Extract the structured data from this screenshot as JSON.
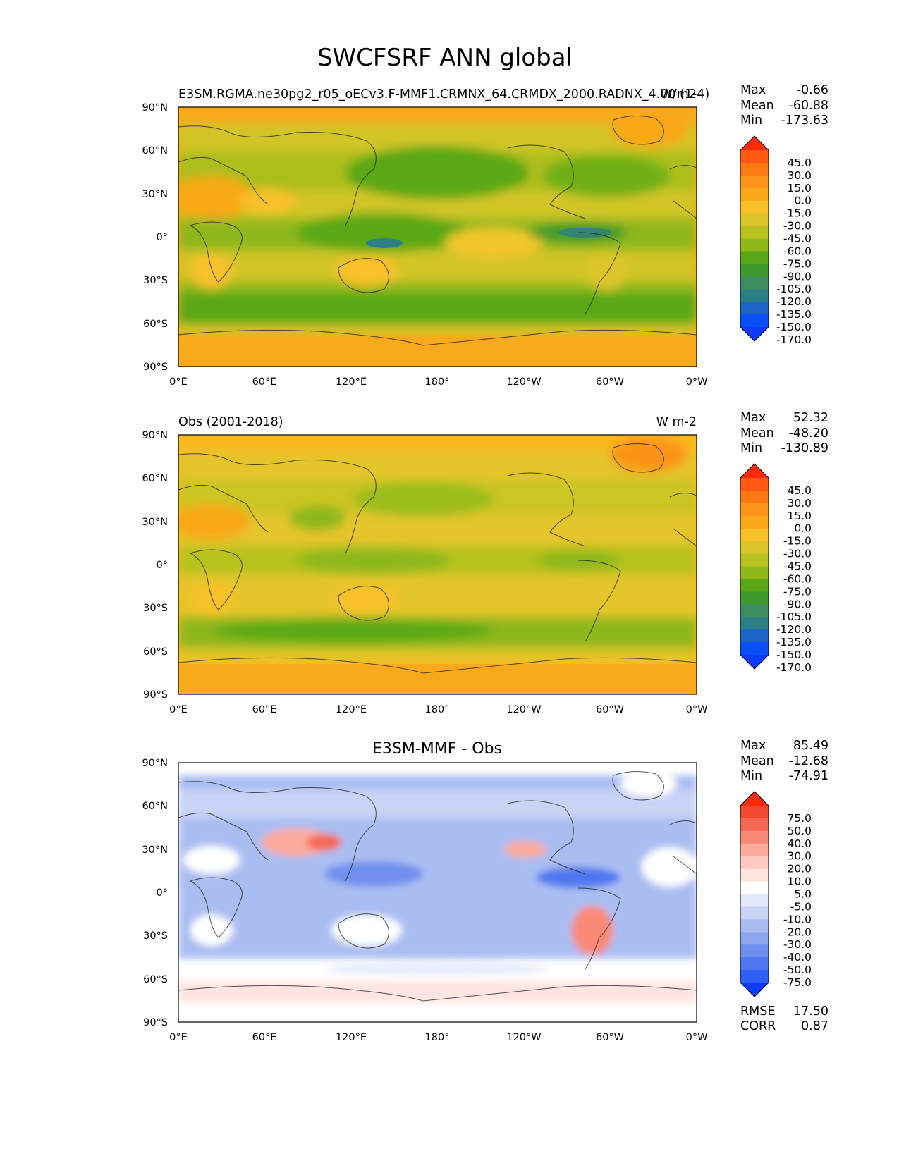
{
  "figure": {
    "title": "SWCFSRF ANN global"
  },
  "axes": {
    "lat_ticks": [
      "90°N",
      "60°N",
      "30°N",
      "0°",
      "30°S",
      "60°S",
      "90°S"
    ],
    "lon_ticks": [
      "0°E",
      "60°E",
      "120°E",
      "180°",
      "120°W",
      "60°W",
      "0°W"
    ]
  },
  "panels": [
    {
      "left_title": "E3SM.RGMA.ne30pg2_r05_oECv3.F-MMF1.CRMNX_64.CRMDX_2000.RADNX_4.00 (1-4)",
      "center_title": "",
      "right_title": "W/m2",
      "stats": [
        {
          "label": "Max",
          "value": "-0.66"
        },
        {
          "label": "Mean",
          "value": "-60.88"
        },
        {
          "label": "Min",
          "value": "-173.63"
        }
      ],
      "colorbar": {
        "labels": [
          "45.0",
          "30.0",
          "15.0",
          "0.0",
          "-15.0",
          "-30.0",
          "-45.0",
          "-60.0",
          "-75.0",
          "-90.0",
          "-105.0",
          "-120.0",
          "-135.0",
          "-150.0",
          "-170.0"
        ],
        "colors": [
          "#ff2a0a",
          "#ff5a12",
          "#fc7a14",
          "#fb9418",
          "#f9a819",
          "#f9c12a",
          "#dcc52a",
          "#b8c21e",
          "#8fb81a",
          "#5aa817",
          "#3f9a2c",
          "#3c8c5e",
          "#2d7f86",
          "#1d64c8",
          "#0a4ef5",
          "#0a3cff"
        ]
      },
      "map_style": "model"
    },
    {
      "left_title": "Obs (2001-2018)",
      "center_title": "",
      "right_title": "W m-2",
      "stats": [
        {
          "label": "Max",
          "value": "52.32"
        },
        {
          "label": "Mean",
          "value": "-48.20"
        },
        {
          "label": "Min",
          "value": "-130.89"
        }
      ],
      "colorbar": {
        "labels": [
          "45.0",
          "30.0",
          "15.0",
          "0.0",
          "-15.0",
          "-30.0",
          "-45.0",
          "-60.0",
          "-75.0",
          "-90.0",
          "-105.0",
          "-120.0",
          "-135.0",
          "-150.0",
          "-170.0"
        ],
        "colors": [
          "#ff2a0a",
          "#ff5a12",
          "#fc7a14",
          "#fb9418",
          "#f9a819",
          "#f9c12a",
          "#dcc52a",
          "#b8c21e",
          "#8fb81a",
          "#5aa817",
          "#3f9a2c",
          "#3c8c5e",
          "#2d7f86",
          "#1d64c8",
          "#0a4ef5",
          "#0a3cff"
        ]
      },
      "map_style": "obs"
    },
    {
      "left_title": "",
      "center_title": "E3SM-MMF - Obs",
      "right_title": "",
      "stats": [
        {
          "label": "Max",
          "value": "85.49"
        },
        {
          "label": "Mean",
          "value": "-12.68"
        },
        {
          "label": "Min",
          "value": "-74.91"
        }
      ],
      "colorbar": {
        "labels": [
          "75.0",
          "50.0",
          "40.0",
          "30.0",
          "20.0",
          "10.0",
          "5.0",
          "-5.0",
          "-10.0",
          "-20.0",
          "-30.0",
          "-40.0",
          "-50.0",
          "-75.0"
        ],
        "colors": [
          "#ff2a08",
          "#f24a30",
          "#f66a55",
          "#f98a78",
          "#fbaa9c",
          "#fdc9c0",
          "#fee4df",
          "#ffffff",
          "#e4e9fb",
          "#c8d3f6",
          "#aabdf2",
          "#8ca6ee",
          "#6f8fee",
          "#4f78f0",
          "#2f5ff5",
          "#0a3cff"
        ]
      },
      "map_style": "diff",
      "footer_stats": [
        {
          "label": "RMSE",
          "value": "17.50"
        },
        {
          "label": "CORR",
          "value": "0.87"
        }
      ]
    }
  ]
}
